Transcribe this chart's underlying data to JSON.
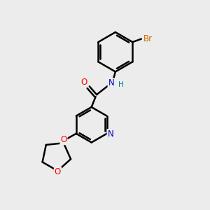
{
  "bg_color": "#ececec",
  "bond_color": "#000000",
  "bond_width": 1.8,
  "atom_colors": {
    "N": "#0000cc",
    "O": "#ff0000",
    "Br": "#cc6600",
    "H": "#008080",
    "C": "#000000"
  },
  "font_size": 8.5,
  "dbo": 0.06
}
